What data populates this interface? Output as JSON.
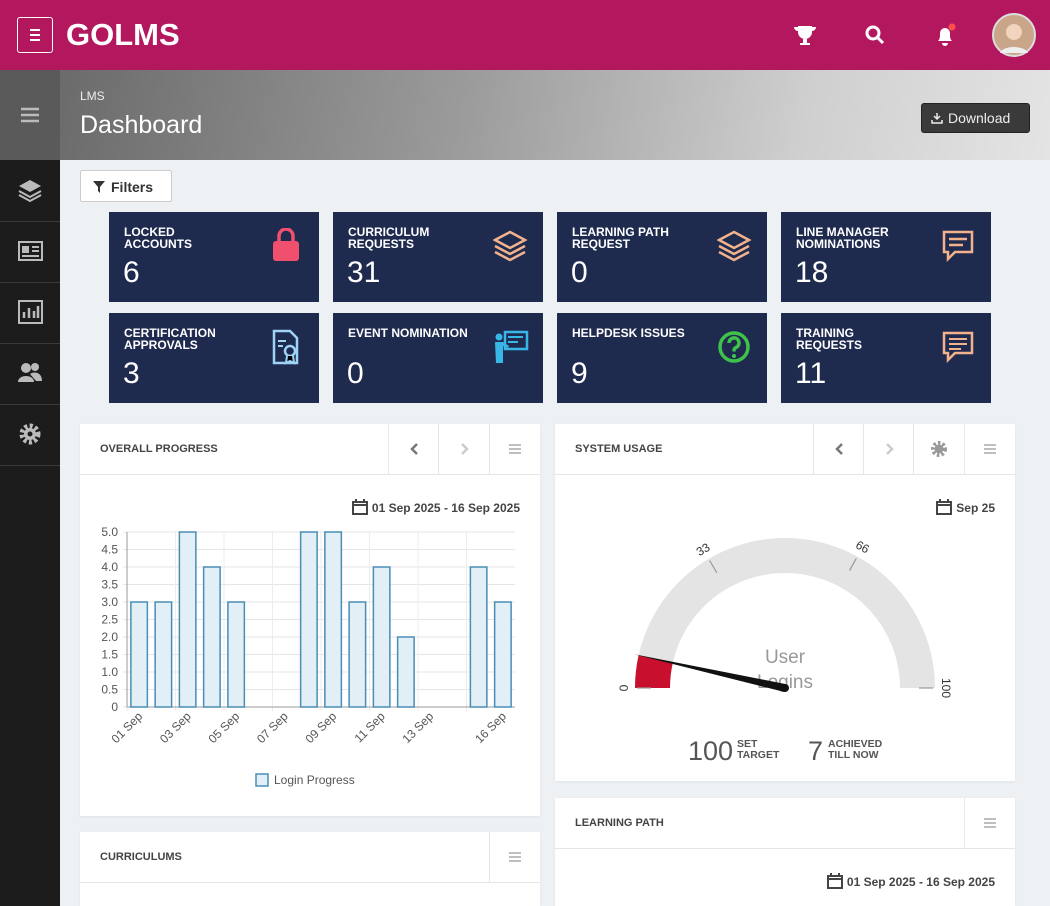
{
  "header": {
    "brand": "GOLMS"
  },
  "page": {
    "breadcrumb": "LMS",
    "title": "Dashboard",
    "download": "Download",
    "filters": "Filters"
  },
  "tiles": [
    {
      "label": "LOCKED ACCOUNTS",
      "value": 6
    },
    {
      "label": "CURRICULUM REQUESTS",
      "value": 31
    },
    {
      "label": "LEARNING PATH REQUEST",
      "value": 0
    },
    {
      "label": "LINE MANAGER NOMINATIONS",
      "value": 18
    },
    {
      "label": "CERTIFICATION APPROVALS",
      "value": 3
    },
    {
      "label": "EVENT NOMINATION",
      "value": 0
    },
    {
      "label": "HELPDESK ISSUES",
      "value": 9
    },
    {
      "label": "TRAINING REQUESTS",
      "value": 11
    }
  ],
  "overall_progress": {
    "title": "OVERALL PROGRESS",
    "date_range": "01 Sep 2025 - 16 Sep 2025",
    "chart": {
      "type": "bar",
      "categories": [
        "01 Sep",
        null,
        "03 Sep",
        null,
        "05 Sep",
        null,
        "07 Sep",
        null,
        "09 Sep",
        null,
        "11 Sep",
        null,
        "13 Sep",
        null,
        null,
        "16 Sep"
      ],
      "series": [
        {
          "name": "Login Progress",
          "color": "#4a8db5",
          "values": [
            3,
            3,
            5,
            4,
            3,
            0,
            0,
            5,
            5,
            3,
            4,
            2,
            0,
            0,
            4,
            3
          ]
        }
      ],
      "ylim": [
        0,
        5
      ],
      "yticks": [
        0,
        0.5,
        {
          "value": 1,
          "label": "1.0"
        },
        1.5,
        {
          "value": 2,
          "label": "2.0"
        },
        2.5,
        {
          "value": 3,
          "label": "3.0"
        },
        3.5,
        {
          "value": 4,
          "label": "4.0"
        },
        4.5,
        {
          "value": 5,
          "label": "5.0"
        }
      ],
      "grid": true
    }
  },
  "system_usage": {
    "title": "SYSTEM USAGE",
    "date": "Sep 25",
    "gauge": {
      "type": "gauge",
      "range": [
        0,
        100
      ],
      "ticks": [
        0,
        33,
        66,
        100
      ],
      "value": 7,
      "label": "User Logins",
      "color": "#c8102e"
    },
    "target": 100,
    "target_label": "SET TARGET",
    "achieved": 7,
    "achieved_label": "ACHIEVED TILL NOW"
  },
  "learning_path": {
    "title": "LEARNING PATH",
    "date_range": "01 Sep 2025 - 16 Sep 2025"
  },
  "curriculums": {
    "title": "CURRICULUMS"
  }
}
